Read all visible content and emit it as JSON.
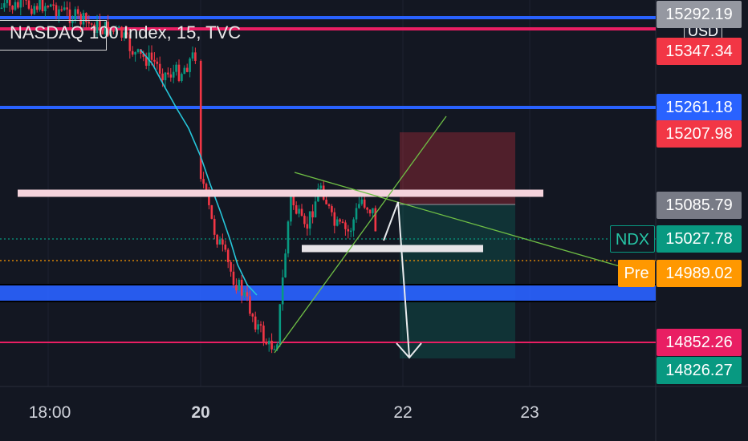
{
  "header": {
    "title": "NASDAQ 100 Index, 15, TVC",
    "currency_button": "USD"
  },
  "chart_data": {
    "type": "candlestick",
    "symbol": "NASDAQ 100 Index",
    "interval": "15",
    "source": "TVC",
    "x_ticks": [
      {
        "label": "18:00",
        "bold": false
      },
      {
        "label": "20",
        "bold": true
      },
      {
        "label": "22",
        "bold": false
      },
      {
        "label": "23",
        "bold": false
      }
    ],
    "price_labels": [
      {
        "value": "15292.19",
        "color": "#9598a1"
      },
      {
        "value": "15347.34",
        "color": "#f23645"
      },
      {
        "value": "15261.18",
        "color": "#2962ff"
      },
      {
        "value": "15207.98",
        "color": "#f23645"
      },
      {
        "value": "15085.79",
        "color": "#787b86"
      },
      {
        "value": "15027.78",
        "color": "#089981"
      },
      {
        "value": "14989.02",
        "color": "#ff9800"
      },
      {
        "value": "14852.26",
        "color": "#e91e63"
      },
      {
        "value": "14826.27",
        "color": "#089981"
      }
    ],
    "tags": [
      {
        "text": "NDX",
        "color": "#089981"
      },
      {
        "text": "Pre",
        "color": "#ff9800"
      }
    ],
    "horizontal_levels": [
      {
        "value": 15292.19,
        "color": "#2962ff"
      },
      {
        "value": 15347.34,
        "color": "#e91e63"
      },
      {
        "value": 15261.18,
        "color": "#2962ff"
      },
      {
        "value": 14852.26,
        "color": "#e91e63"
      }
    ],
    "last_price": 15027.78,
    "premarket_price": 14989.02
  }
}
